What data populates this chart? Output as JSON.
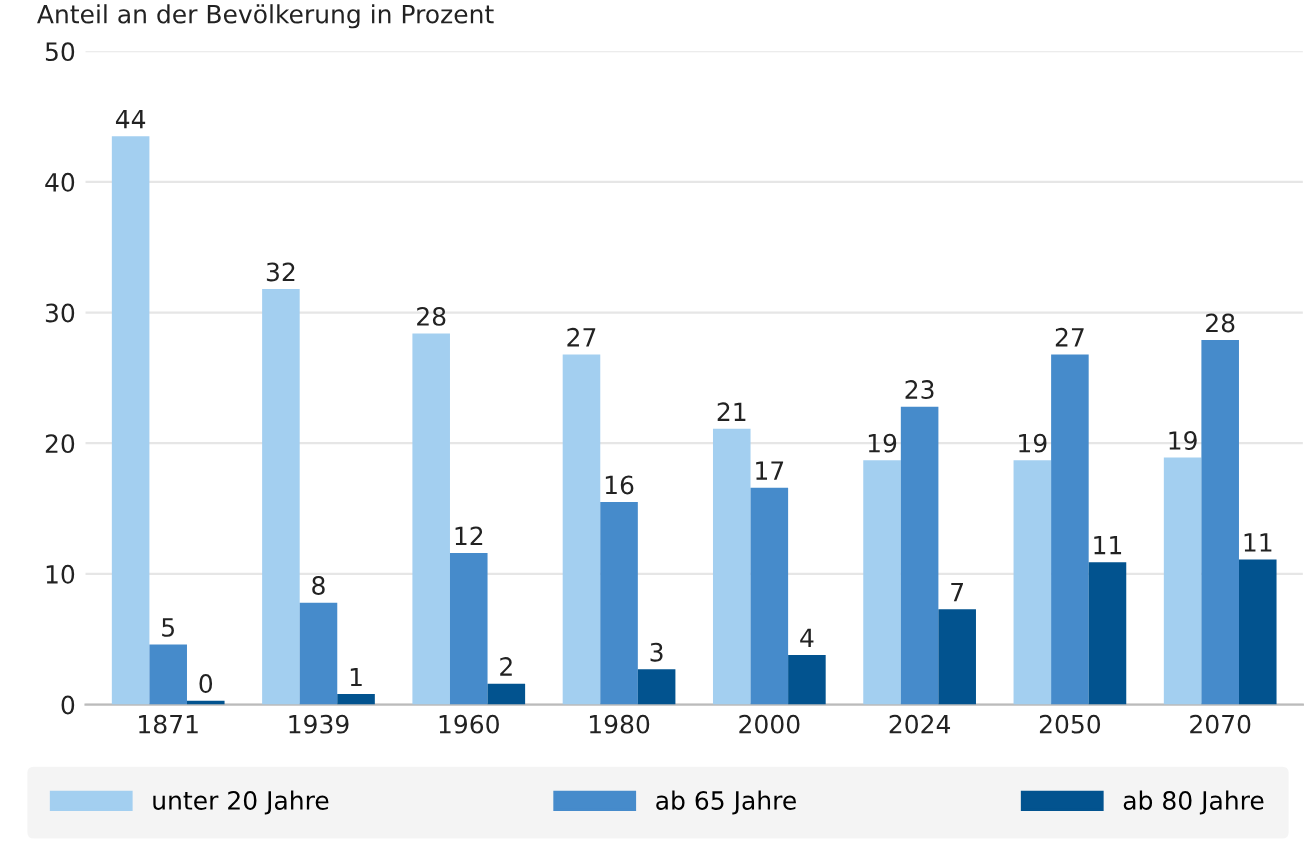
{
  "chart_data": {
    "type": "bar",
    "ylabel": "Anteil an der Bevölkerung in Prozent",
    "categories": [
      "1871",
      "1939",
      "1960",
      "1980",
      "2000",
      "2024",
      "2050",
      "2070"
    ],
    "series": [
      {
        "name": "unter 20 Jahre",
        "color": "#a3cff0",
        "values": [
          43.5,
          31.8,
          28.4,
          26.8,
          21.1,
          18.7,
          18.7,
          18.9
        ],
        "value_labels": [
          "44",
          "32",
          "28",
          "27",
          "21",
          "19",
          "19",
          "19"
        ]
      },
      {
        "name": "ab 65 Jahre",
        "color": "#468bcb",
        "values": [
          4.6,
          7.8,
          11.6,
          15.5,
          16.6,
          22.8,
          26.8,
          27.9
        ],
        "value_labels": [
          "5",
          "8",
          "12",
          "16",
          "17",
          "23",
          "27",
          "28"
        ]
      },
      {
        "name": "ab 80 Jahre",
        "color": "#02538f",
        "values": [
          0.3,
          0.8,
          1.6,
          2.7,
          3.8,
          7.3,
          10.9,
          11.1
        ],
        "value_labels": [
          "0",
          "1",
          "2",
          "3",
          "4",
          "7",
          "11",
          "11"
        ]
      }
    ],
    "ylim": [
      0,
      50
    ],
    "yticks": [
      0,
      10,
      20,
      30,
      40,
      50
    ],
    "grid": "y",
    "legend": "bottom"
  }
}
